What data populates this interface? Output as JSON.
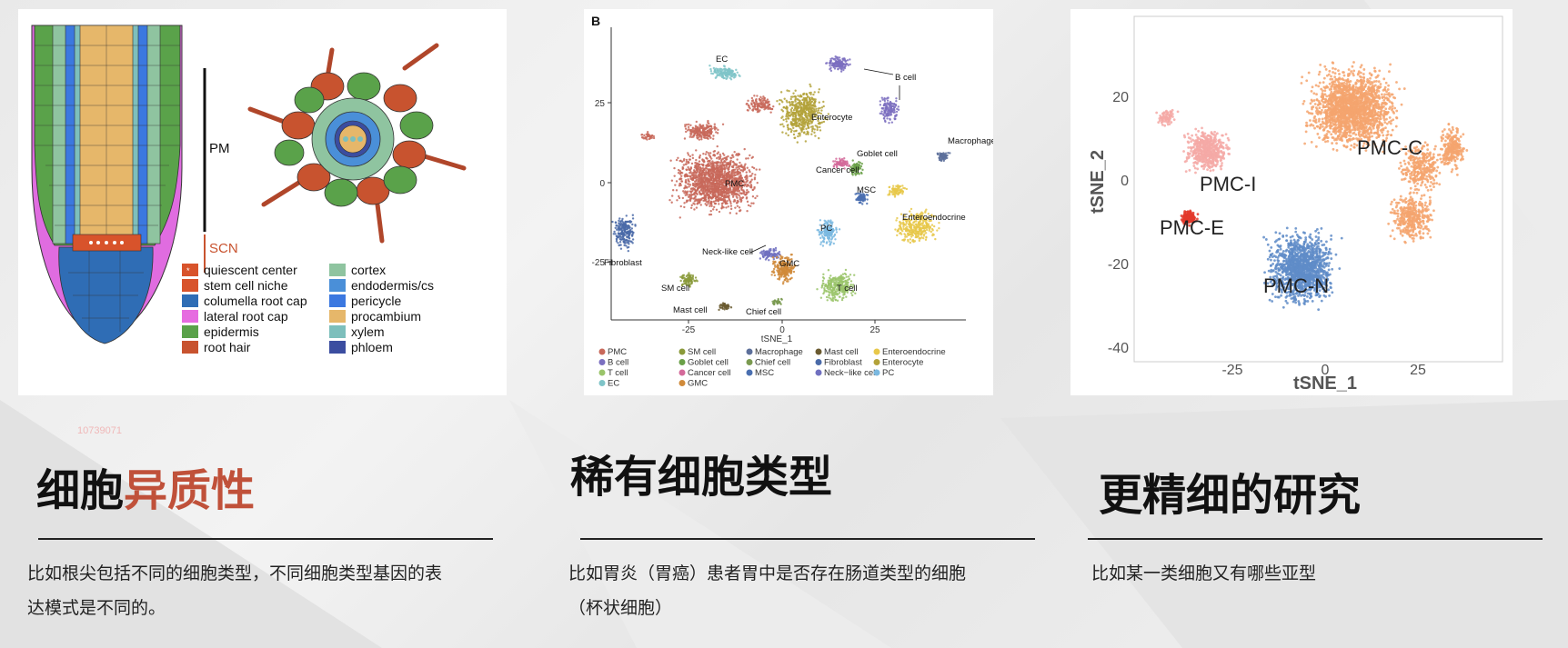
{
  "watermark": "10739071",
  "sections": [
    {
      "heading_plain": "细胞",
      "heading_accent": "异质性",
      "description_line1": "比如根尖包括不同的细胞类型，不同细胞类型基因的表",
      "description_line2": "达模式是不同的。"
    },
    {
      "heading": "稀有细胞类型",
      "description_line1": "比如胃炎（胃癌）患者胃中是否存在肠道类型的细胞",
      "description_line2": "（杯状细胞）"
    },
    {
      "heading": "更精细的研究",
      "description_line1": "比如某一类细胞又有哪些亚型"
    }
  ],
  "root_diagram": {
    "label_pm": "PM",
    "label_scn": "SCN",
    "legend": [
      {
        "label": "quiescent center",
        "color": "#d8532b"
      },
      {
        "label": "stem cell niche",
        "color": "#d8532b"
      },
      {
        "label": "columella root cap",
        "color": "#2f6db5"
      },
      {
        "label": "lateral root cap",
        "color": "#e66ce0"
      },
      {
        "label": "epidermis",
        "color": "#5aa24a"
      },
      {
        "label": "root hair",
        "color": "#c8532f"
      },
      {
        "label": "cortex",
        "color": "#8fc4a0"
      },
      {
        "label": "endodermis/cs",
        "color": "#4a8fd8"
      },
      {
        "label": "pericycle",
        "color": "#3b78e0"
      },
      {
        "label": "procambium",
        "color": "#e6b76a"
      },
      {
        "label": "xylem",
        "color": "#7dbfbc"
      },
      {
        "label": "phloem",
        "color": "#3b4da0"
      }
    ]
  },
  "tsne_b": {
    "panel_label": "B",
    "xlabel": "tSNE_1",
    "x_ticks": [
      "-25",
      "0",
      "25"
    ],
    "y_ticks": [
      "25",
      "0",
      "-25"
    ],
    "clusters": [
      {
        "label": "EC",
        "color": "#7fc4c8"
      },
      {
        "label": "B cell",
        "color": "#7b6fc0"
      },
      {
        "label": "Macrophage",
        "color": "#5c6f9a"
      },
      {
        "label": "Enterocyte",
        "color": "#b3a23a"
      },
      {
        "label": "Goblet cell",
        "color": "#6aa048"
      },
      {
        "label": "Cancer cell",
        "color": "#d46a9a"
      },
      {
        "label": "MSC",
        "color": "#4a6fb0"
      },
      {
        "label": "PMC",
        "color": "#c8685a"
      },
      {
        "label": "Enteroendocrine",
        "color": "#e8c84a"
      },
      {
        "label": "PC",
        "color": "#7ab8e0"
      },
      {
        "label": "Neck-like cell",
        "color": "#7070c0"
      },
      {
        "label": "GMC",
        "color": "#d08a3a"
      },
      {
        "label": "Fibroblast",
        "color": "#4a6aa8"
      },
      {
        "label": "SM cell",
        "color": "#8a9a3a"
      },
      {
        "label": "T cell",
        "color": "#9ac46a"
      },
      {
        "label": "Mast cell",
        "color": "#6a5a30"
      },
      {
        "label": "Chief cell",
        "color": "#7a9a50"
      }
    ],
    "legend": [
      {
        "label": "PMC",
        "color": "#c8685a"
      },
      {
        "label": "SM cell",
        "color": "#8a9a3a"
      },
      {
        "label": "Macrophage",
        "color": "#5c6f9a"
      },
      {
        "label": "Mast cell",
        "color": "#6a5a30"
      },
      {
        "label": "Enteroendocrine",
        "color": "#e8c84a"
      },
      {
        "label": "B cell",
        "color": "#7b6fc0"
      },
      {
        "label": "Goblet cell",
        "color": "#6aa048"
      },
      {
        "label": "Chief cell",
        "color": "#7a9a50"
      },
      {
        "label": "Fibroblast",
        "color": "#4a6aa8"
      },
      {
        "label": "Enterocyte",
        "color": "#b3a23a"
      },
      {
        "label": "T cell",
        "color": "#9ac46a"
      },
      {
        "label": "Cancer cell",
        "color": "#d46a9a"
      },
      {
        "label": "MSC",
        "color": "#4a6fb0"
      },
      {
        "label": "Neck−like cell",
        "color": "#7070c0"
      },
      {
        "label": "PC",
        "color": "#7ab8e0"
      },
      {
        "label": "EC",
        "color": "#7fc4c8"
      },
      {
        "label": "GMC",
        "color": "#d08a3a"
      }
    ]
  },
  "tsne_pmc": {
    "xlabel": "tSNE_1",
    "ylabel": "tSNE_2",
    "x_ticks": [
      "-25",
      "0",
      "25"
    ],
    "y_ticks": [
      "20",
      "0",
      "-20",
      "-40"
    ],
    "clusters": [
      {
        "label": "PMC-C",
        "color": "#f4a46e"
      },
      {
        "label": "PMC-I",
        "color": "#f5a9a6"
      },
      {
        "label": "PMC-E",
        "color": "#e33a2c"
      },
      {
        "label": "PMC-N",
        "color": "#5f8cc8"
      }
    ]
  }
}
